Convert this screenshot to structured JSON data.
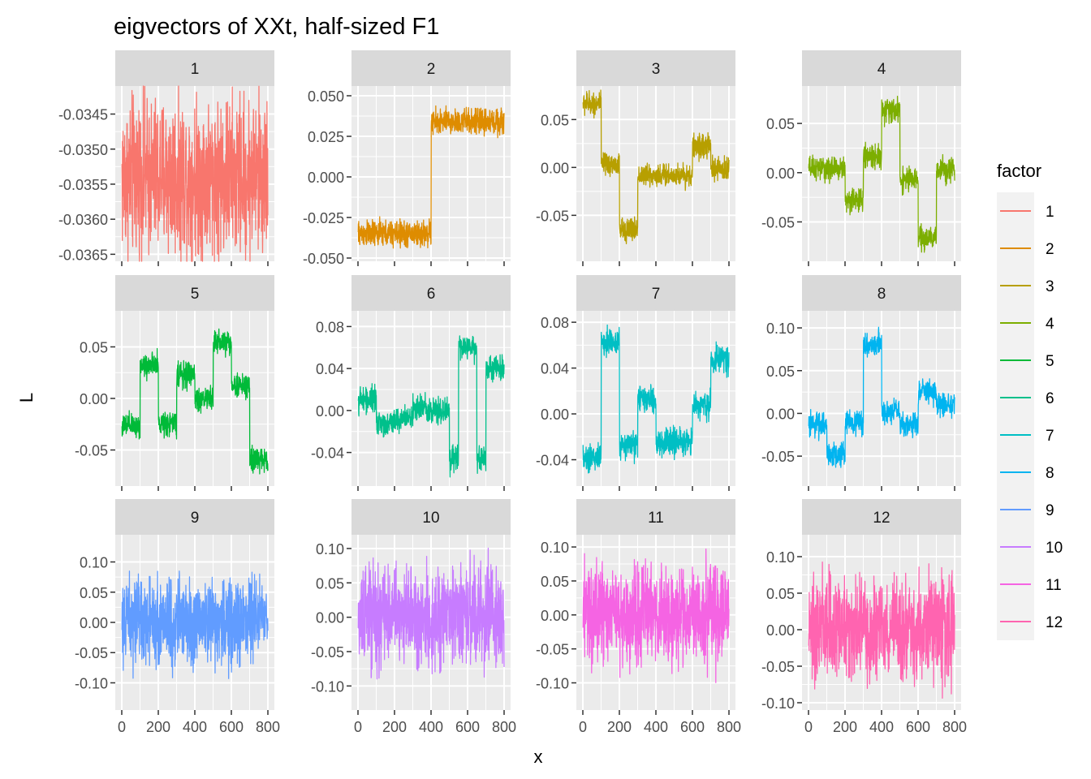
{
  "chart_data": {
    "type": "line",
    "title": "eigvectors of XXt, half-sized F1",
    "xlabel": "x",
    "ylabel": "L",
    "xlim": [
      0,
      800
    ],
    "x_ticks": [
      0,
      200,
      400,
      600,
      800
    ],
    "x_tick_labels": [
      "0",
      "200",
      "400",
      "600",
      "800"
    ],
    "legend": {
      "title": "factor",
      "position": "right",
      "entries": [
        "1",
        "2",
        "3",
        "4",
        "5",
        "6",
        "7",
        "8",
        "9",
        "10",
        "11",
        "12"
      ]
    },
    "panels": [
      {
        "name": "1",
        "color": "#F8766D",
        "ylim": [
          -0.0366,
          -0.0341
        ],
        "y_ticks": [
          -0.0345,
          -0.035,
          -0.0355,
          -0.036,
          -0.0365
        ],
        "y_tick_labels": [
          "-0.0345",
          "-0.0350",
          "-0.0355",
          "-0.0360",
          "-0.0365"
        ],
        "levels": [
          [
            0,
            800,
            -0.0354
          ]
        ],
        "noise": 0.00055
      },
      {
        "name": "2",
        "color": "#DE8C00",
        "ylim": [
          -0.052,
          0.056
        ],
        "y_ticks": [
          0.05,
          0.025,
          0.0,
          -0.025,
          -0.05
        ],
        "y_tick_labels": [
          "0.050",
          "0.025",
          "0.000",
          "-0.025",
          "-0.050"
        ],
        "levels": [
          [
            0,
            400,
            -0.035
          ],
          [
            400,
            800,
            0.034
          ]
        ],
        "noise": 0.004
      },
      {
        "name": "3",
        "color": "#B79F00",
        "ylim": [
          -0.098,
          0.085
        ],
        "y_ticks": [
          0.05,
          0.0,
          -0.05
        ],
        "y_tick_labels": [
          "0.05",
          "0.00",
          "-0.05"
        ],
        "levels": [
          [
            0,
            100,
            0.067
          ],
          [
            100,
            200,
            0.003
          ],
          [
            200,
            300,
            -0.065
          ],
          [
            300,
            600,
            -0.008
          ],
          [
            600,
            700,
            0.022
          ],
          [
            700,
            800,
            -0.002
          ]
        ],
        "noise": 0.006
      },
      {
        "name": "4",
        "color": "#7CAE00",
        "ylim": [
          -0.09,
          0.088
        ],
        "y_ticks": [
          0.05,
          0.0,
          -0.05
        ],
        "y_tick_labels": [
          "0.05",
          "0.00",
          "-0.05"
        ],
        "levels": [
          [
            0,
            200,
            0.004
          ],
          [
            200,
            300,
            -0.028
          ],
          [
            300,
            400,
            0.017
          ],
          [
            400,
            500,
            0.063
          ],
          [
            500,
            600,
            -0.007
          ],
          [
            600,
            700,
            -0.067
          ],
          [
            700,
            800,
            0.004
          ]
        ],
        "noise": 0.006
      },
      {
        "name": "5",
        "color": "#00BA38",
        "ylim": [
          -0.085,
          0.085
        ],
        "y_ticks": [
          0.05,
          0.0,
          -0.05
        ],
        "y_tick_labels": [
          "0.05",
          "0.00",
          "-0.05"
        ],
        "levels": [
          [
            0,
            100,
            -0.027
          ],
          [
            100,
            200,
            0.032
          ],
          [
            200,
            300,
            -0.024
          ],
          [
            300,
            400,
            0.023
          ],
          [
            400,
            500,
            0.0
          ],
          [
            500,
            600,
            0.055
          ],
          [
            600,
            700,
            0.012
          ],
          [
            700,
            800,
            -0.06
          ]
        ],
        "noise": 0.006
      },
      {
        "name": "6",
        "color": "#00C08B",
        "ylim": [
          -0.072,
          0.095
        ],
        "y_ticks": [
          0.08,
          0.04,
          0.0,
          -0.04
        ],
        "y_tick_labels": [
          "0.08",
          "0.04",
          "0.00",
          "-0.04"
        ],
        "levels": [
          [
            0,
            100,
            0.01
          ],
          [
            100,
            200,
            -0.012
          ],
          [
            200,
            300,
            -0.008
          ],
          [
            300,
            400,
            0.003
          ],
          [
            400,
            500,
            0.0
          ],
          [
            500,
            550,
            -0.047
          ],
          [
            550,
            650,
            0.06
          ],
          [
            650,
            700,
            -0.047
          ],
          [
            700,
            800,
            0.04
          ]
        ],
        "noise": 0.006
      },
      {
        "name": "7",
        "color": "#00BFC4",
        "ylim": [
          -0.063,
          0.09
        ],
        "y_ticks": [
          0.08,
          0.04,
          0.0,
          -0.04
        ],
        "y_tick_labels": [
          "0.08",
          "0.04",
          "0.00",
          "-0.04"
        ],
        "levels": [
          [
            0,
            100,
            -0.038
          ],
          [
            100,
            200,
            0.063
          ],
          [
            200,
            300,
            -0.028
          ],
          [
            300,
            400,
            0.012
          ],
          [
            400,
            600,
            -0.025
          ],
          [
            600,
            700,
            0.008
          ],
          [
            700,
            800,
            0.048
          ]
        ],
        "noise": 0.006
      },
      {
        "name": "8",
        "color": "#00B4F0",
        "ylim": [
          -0.085,
          0.12
        ],
        "y_ticks": [
          0.1,
          0.05,
          0.0,
          -0.05
        ],
        "y_tick_labels": [
          "0.10",
          "0.05",
          "0.00",
          "-0.05"
        ],
        "levels": [
          [
            0,
            100,
            -0.013
          ],
          [
            100,
            200,
            -0.048
          ],
          [
            200,
            300,
            -0.01
          ],
          [
            300,
            400,
            0.08
          ],
          [
            400,
            500,
            0.002
          ],
          [
            500,
            600,
            -0.013
          ],
          [
            600,
            700,
            0.025
          ],
          [
            700,
            800,
            0.01
          ]
        ],
        "noise": 0.007
      },
      {
        "name": "9",
        "color": "#619CFF",
        "ylim": [
          -0.145,
          0.145
        ],
        "y_ticks": [
          0.1,
          0.05,
          0.0,
          -0.05,
          -0.1
        ],
        "y_tick_labels": [
          "0.10",
          "0.05",
          "0.00",
          "-0.05",
          "-0.10"
        ],
        "levels": [
          [
            0,
            800,
            0.0
          ]
        ],
        "noise": 0.035
      },
      {
        "name": "10",
        "color": "#C77CFF",
        "ylim": [
          -0.135,
          0.12
        ],
        "y_ticks": [
          0.1,
          0.05,
          0.0,
          -0.05,
          -0.1
        ],
        "y_tick_labels": [
          "0.10",
          "0.05",
          "0.00",
          "-0.05",
          "-0.10"
        ],
        "levels": [
          [
            0,
            800,
            0.0
          ]
        ],
        "noise": 0.035
      },
      {
        "name": "11",
        "color": "#F564E3",
        "ylim": [
          -0.14,
          0.118
        ],
        "y_ticks": [
          0.1,
          0.05,
          0.0,
          -0.05,
          -0.1
        ],
        "y_tick_labels": [
          "0.10",
          "0.05",
          "0.00",
          "-0.05",
          "-0.10"
        ],
        "levels": [
          [
            0,
            800,
            0.0
          ]
        ],
        "noise": 0.035
      },
      {
        "name": "12",
        "color": "#FF64B0",
        "ylim": [
          -0.11,
          0.13
        ],
        "y_ticks": [
          0.1,
          0.05,
          0.0,
          -0.05,
          -0.1
        ],
        "y_tick_labels": [
          "0.10",
          "0.05",
          "0.00",
          "-0.05",
          "-0.10"
        ],
        "levels": [
          [
            0,
            800,
            0.0
          ]
        ],
        "noise": 0.035
      }
    ]
  }
}
